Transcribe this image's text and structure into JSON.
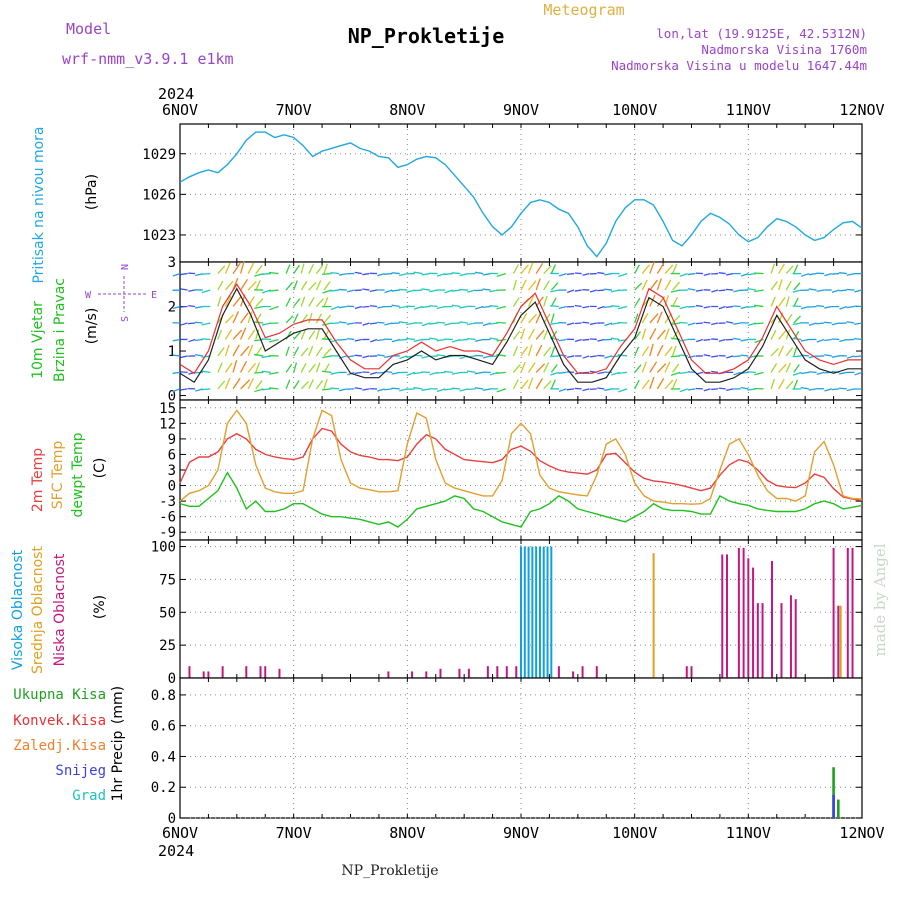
{
  "header": {
    "model_label": "Model",
    "model_name": "wrf-nmm_v3.9.1 e1km",
    "title": "NP_Prokletije",
    "meteogram_label": "Meteogram",
    "coords": "lon,lat (19.9125E, 42.5312N)",
    "elevation": "Nadmorska Visina 1760m",
    "model_elevation": "Nadmorska Visina u modelu 1647.44m",
    "footer_title": "NP_Prokletije",
    "watermark": "made by Angel",
    "year": "2024"
  },
  "colors": {
    "purple": "#9a44c8",
    "gold": "#e0b040",
    "pressure": "#20a8e0",
    "temp2m": "#e84040",
    "sfc": "#e0a030",
    "dew": "#20c020",
    "wind_green": "#20c020",
    "high_cloud": "#10a0e0",
    "mid_cloud": "#e0a020",
    "low_cloud": "#c01880",
    "total_precip": "#20a020",
    "conv_precip": "#e83030",
    "frozen_precip": "#f08030",
    "snow": "#4040e0",
    "graupel": "#20c0c0"
  },
  "chart_data": [
    {
      "type": "line",
      "panel": "pressure",
      "ylabel": "Pritisak na nivou mora",
      "unit": "(hPa)",
      "x_ticks": [
        "6NOV",
        "7NOV",
        "8NOV",
        "9NOV",
        "10NOV",
        "11NOV",
        "12NOV"
      ],
      "y_ticks": [
        1023,
        1026,
        1029
      ],
      "ylim": [
        1021.0,
        1031.2
      ],
      "xlim": [
        0,
        144
      ],
      "grid": true,
      "series": [
        {
          "color": "#20a8e0",
          "x": [
            0,
            2,
            4,
            6,
            8,
            10,
            12,
            14,
            16,
            18,
            20,
            22,
            24,
            26,
            28,
            30,
            32,
            34,
            36,
            38,
            40,
            42,
            44,
            46,
            48,
            50,
            52,
            54,
            56,
            58,
            60,
            62,
            64,
            66,
            68,
            70,
            72,
            74,
            76,
            78,
            80,
            82,
            84,
            86,
            88,
            90,
            92,
            94,
            96,
            98,
            100,
            102,
            104,
            106,
            108,
            110,
            112,
            114,
            116,
            118,
            120,
            122,
            124,
            126,
            128,
            130,
            132,
            134,
            136,
            138,
            140,
            142,
            144
          ],
          "values": [
            1026.9,
            1027.3,
            1027.6,
            1027.8,
            1027.6,
            1028.2,
            1029.0,
            1030.0,
            1030.6,
            1030.6,
            1030.2,
            1030.4,
            1030.2,
            1029.6,
            1028.8,
            1029.2,
            1029.4,
            1029.6,
            1029.8,
            1029.4,
            1029.2,
            1028.8,
            1028.7,
            1028.0,
            1028.2,
            1028.6,
            1028.8,
            1028.7,
            1028.2,
            1027.4,
            1026.6,
            1025.8,
            1024.6,
            1023.6,
            1023.0,
            1023.6,
            1024.6,
            1025.4,
            1025.6,
            1025.4,
            1024.9,
            1024.6,
            1023.6,
            1022.2,
            1021.4,
            1022.4,
            1024.0,
            1025.0,
            1025.6,
            1025.6,
            1025.2,
            1024.0,
            1022.6,
            1022.2,
            1023.0,
            1024.0,
            1024.6,
            1024.3,
            1023.8,
            1023.0,
            1022.5,
            1022.8,
            1023.6,
            1024.2,
            1024.0,
            1023.6,
            1023.0,
            1022.6,
            1022.8,
            1023.4,
            1023.9,
            1024.0,
            1023.5
          ]
        }
      ]
    },
    {
      "type": "line",
      "panel": "wind",
      "ylabel": [
        "10m Vjetar",
        "Brzina i Pravac"
      ],
      "unit": "(m/s)",
      "y_ticks": [
        0,
        1,
        2,
        3
      ],
      "ylim": [
        -0.1,
        3.0
      ],
      "xlim": [
        0,
        144
      ],
      "compass": {
        "n": "N",
        "s": "S",
        "w": "W",
        "e": "E"
      },
      "series": [
        {
          "name": "speed",
          "color": "#202020",
          "x": [
            0,
            3,
            6,
            9,
            12,
            15,
            18,
            21,
            24,
            27,
            30,
            33,
            36,
            39,
            42,
            45,
            48,
            51,
            54,
            57,
            60,
            63,
            66,
            69,
            72,
            75,
            78,
            81,
            84,
            87,
            90,
            93,
            96,
            99,
            102,
            105,
            108,
            111,
            114,
            117,
            120,
            123,
            126,
            129,
            132,
            135,
            138,
            141,
            144
          ],
          "values": [
            0.5,
            0.3,
            0.8,
            1.8,
            2.4,
            1.8,
            1.0,
            1.2,
            1.4,
            1.5,
            1.5,
            1.0,
            0.5,
            0.4,
            0.4,
            0.7,
            0.8,
            1.0,
            0.8,
            0.9,
            0.9,
            0.8,
            0.7,
            1.2,
            1.8,
            2.1,
            1.4,
            0.7,
            0.3,
            0.3,
            0.4,
            0.9,
            1.3,
            2.2,
            2.0,
            1.3,
            0.6,
            0.3,
            0.3,
            0.4,
            0.6,
            1.1,
            1.8,
            1.3,
            0.8,
            0.6,
            0.5,
            0.6,
            0.6
          ]
        },
        {
          "name": "gust",
          "color": "#e83030",
          "x": [
            0,
            3,
            6,
            9,
            12,
            15,
            18,
            21,
            24,
            27,
            30,
            33,
            36,
            39,
            42,
            45,
            48,
            51,
            54,
            57,
            60,
            63,
            66,
            69,
            72,
            75,
            78,
            81,
            84,
            87,
            90,
            93,
            96,
            99,
            102,
            105,
            108,
            111,
            114,
            117,
            120,
            123,
            126,
            129,
            132,
            135,
            138,
            141,
            144
          ],
          "values": [
            0.7,
            0.5,
            1.0,
            2.0,
            2.5,
            2.0,
            1.3,
            1.4,
            1.6,
            1.7,
            1.7,
            1.2,
            0.8,
            0.6,
            0.6,
            0.9,
            1.0,
            1.2,
            1.0,
            1.1,
            1.0,
            1.0,
            0.9,
            1.4,
            2.0,
            2.3,
            1.6,
            0.9,
            0.5,
            0.5,
            0.6,
            1.1,
            1.5,
            2.4,
            2.2,
            1.5,
            0.8,
            0.5,
            0.5,
            0.6,
            0.8,
            1.3,
            2.0,
            1.5,
            1.0,
            0.8,
            0.7,
            0.8,
            0.8
          ]
        }
      ]
    },
    {
      "type": "line",
      "panel": "temperature",
      "ylabel": [
        "2m Temp",
        "SFC Temp",
        "dewpt Temp"
      ],
      "unit": "(C)",
      "y_ticks": [
        -9,
        -6,
        -3,
        0,
        3,
        6,
        9,
        12,
        15
      ],
      "ylim": [
        -10.5,
        16.5
      ],
      "xlim": [
        0,
        144
      ],
      "grid": true,
      "series": [
        {
          "name": "2m Temp",
          "color": "#e84040",
          "x": [
            0,
            2,
            4,
            6,
            8,
            10,
            12,
            14,
            16,
            18,
            20,
            22,
            24,
            26,
            28,
            30,
            32,
            34,
            36,
            38,
            40,
            42,
            44,
            46,
            48,
            50,
            52,
            54,
            56,
            58,
            60,
            62,
            64,
            66,
            68,
            70,
            72,
            74,
            76,
            78,
            80,
            82,
            84,
            86,
            88,
            90,
            92,
            94,
            96,
            98,
            100,
            102,
            104,
            106,
            108,
            110,
            112,
            114,
            116,
            118,
            120,
            122,
            124,
            126,
            128,
            130,
            132,
            134,
            136,
            138,
            140,
            142,
            144
          ],
          "values": [
            0.5,
            4.5,
            5.5,
            5.5,
            6.5,
            9,
            10,
            9,
            7,
            6,
            5.5,
            5.2,
            5,
            5.5,
            9,
            11,
            10.5,
            8,
            6.5,
            5.8,
            5.5,
            5,
            5,
            4.8,
            5.5,
            8,
            9.8,
            9,
            7,
            6,
            5,
            4.8,
            4.6,
            4.4,
            5,
            7,
            7.6,
            6.6,
            4.8,
            3.8,
            3,
            2.6,
            2.4,
            2.2,
            3,
            6,
            6.2,
            4.4,
            2.6,
            1.4,
            0.9,
            0.7,
            0.4,
            0,
            -0.5,
            -1,
            -0.5,
            2,
            4,
            5,
            4.5,
            3,
            1,
            0,
            -0.3,
            -0.4,
            0.5,
            2.2,
            1.6,
            -0.6,
            -2.2,
            -2.6,
            -2.9
          ]
        },
        {
          "name": "SFC Temp",
          "color": "#e0a030",
          "x": [
            0,
            2,
            4,
            6,
            8,
            10,
            12,
            14,
            16,
            18,
            20,
            22,
            24,
            26,
            28,
            30,
            32,
            34,
            36,
            38,
            40,
            42,
            44,
            46,
            48,
            50,
            52,
            54,
            56,
            58,
            60,
            62,
            64,
            66,
            68,
            70,
            72,
            74,
            76,
            78,
            80,
            82,
            84,
            86,
            88,
            90,
            92,
            94,
            96,
            98,
            100,
            102,
            104,
            106,
            108,
            110,
            112,
            114,
            116,
            118,
            120,
            122,
            124,
            126,
            128,
            130,
            132,
            134,
            136,
            138,
            140,
            142,
            144
          ],
          "values": [
            -3,
            -1.5,
            -1,
            0,
            3,
            12,
            14.5,
            12,
            4,
            -0.5,
            -1.2,
            -1.5,
            -1.5,
            -1,
            9,
            14.5,
            13.5,
            5,
            0.5,
            -0.5,
            -0.8,
            -1.2,
            -1.2,
            -1,
            8,
            14,
            13,
            5,
            0.5,
            -0.5,
            -1,
            -1.5,
            -2,
            -2,
            1,
            10,
            12,
            10,
            2,
            -0.5,
            -1.2,
            -1.5,
            -1.8,
            -2,
            2,
            8,
            9,
            6,
            0.5,
            -2,
            -3,
            -3.2,
            -3.5,
            -3.5,
            -3.6,
            -3.5,
            -2.5,
            3,
            8,
            9,
            6,
            2,
            -1,
            -2.5,
            -2.5,
            -3,
            -2,
            6.5,
            8.5,
            4,
            -2,
            -2.5,
            -2.6
          ]
        },
        {
          "name": "dewpt Temp",
          "color": "#20c020",
          "x": [
            0,
            2,
            4,
            6,
            8,
            10,
            12,
            14,
            16,
            18,
            20,
            22,
            24,
            26,
            28,
            30,
            32,
            34,
            36,
            38,
            40,
            42,
            44,
            46,
            48,
            50,
            52,
            54,
            56,
            58,
            60,
            62,
            64,
            66,
            68,
            70,
            72,
            74,
            76,
            78,
            80,
            82,
            84,
            86,
            88,
            90,
            92,
            94,
            96,
            98,
            100,
            102,
            104,
            106,
            108,
            110,
            112,
            114,
            116,
            118,
            120,
            122,
            124,
            126,
            128,
            130,
            132,
            134,
            136,
            138,
            140,
            142,
            144
          ],
          "values": [
            -3.5,
            -4,
            -4,
            -2.5,
            -1,
            2.5,
            -0.5,
            -4.5,
            -3,
            -5,
            -5,
            -4.5,
            -3.5,
            -3.5,
            -4.5,
            -5.5,
            -6,
            -6,
            -6.3,
            -6.5,
            -7,
            -7.5,
            -7,
            -8,
            -6.5,
            -4.5,
            -4,
            -3.5,
            -3,
            -2,
            -2.5,
            -4.5,
            -5,
            -6,
            -7,
            -7.5,
            -8,
            -5,
            -4.5,
            -3.5,
            -2,
            -3,
            -4.5,
            -5,
            -5.5,
            -6,
            -6.5,
            -7,
            -6,
            -5,
            -3.5,
            -4.5,
            -4.8,
            -4.8,
            -5,
            -5.5,
            -5.5,
            -2,
            -3,
            -3.5,
            -3.8,
            -4.5,
            -4.8,
            -5,
            -5,
            -5,
            -4.5,
            -3.5,
            -3,
            -3.5,
            -4.5,
            -4.2,
            -3.8
          ]
        }
      ]
    },
    {
      "type": "bar",
      "panel": "clouds",
      "ylabel": [
        "Visoka Oblacnost",
        "Srednja Oblacnost",
        "Niska Oblacnost"
      ],
      "unit": "(%)",
      "y_ticks": [
        0,
        25,
        50,
        75,
        100
      ],
      "ylim": [
        0,
        105
      ],
      "xlim": [
        0,
        144
      ],
      "grid": true,
      "series": [
        {
          "name": "Visoka Oblacnost",
          "color": "#10a0e0",
          "x": [
            72,
            72.8,
            73.6,
            74.4,
            75.2,
            76.0,
            76.8,
            77.6,
            78.4
          ],
          "values": [
            100,
            100,
            100,
            100,
            100,
            100,
            100,
            100,
            100
          ]
        },
        {
          "name": "Srednja Oblacnost",
          "color": "#e0a020",
          "x": [
            100,
            139.5
          ],
          "values": [
            95,
            55
          ]
        },
        {
          "name": "Niska Oblacnost",
          "color": "#c01880",
          "x": [
            2,
            5,
            6,
            9,
            14,
            17,
            18,
            21,
            44,
            49,
            52,
            55,
            59,
            61,
            65,
            67,
            69,
            71,
            80,
            83,
            85,
            88,
            107,
            108,
            114.5,
            115.5,
            118,
            119,
            120,
            121,
            122,
            123,
            125,
            127,
            129,
            130,
            138,
            139,
            141,
            142
          ],
          "values": [
            9,
            5,
            5,
            9,
            9,
            9,
            9,
            7,
            5,
            5,
            5,
            7,
            7,
            7,
            9,
            9,
            9,
            9,
            9,
            5,
            9,
            9,
            9,
            9,
            94,
            94,
            99,
            99,
            91,
            84,
            57,
            57,
            89,
            57,
            63,
            60,
            99,
            55,
            99,
            99
          ]
        }
      ]
    },
    {
      "type": "bar",
      "panel": "precip",
      "ylabel": "1hr Precip",
      "unit": "(mm)",
      "y_ticks": [
        0,
        0.2,
        0.4,
        0.6,
        0.8
      ],
      "ylim": [
        0,
        0.91
      ],
      "xlim": [
        0,
        144
      ],
      "grid": true,
      "legend": [
        "Ukupna Kisa",
        "Konvek.Kisa",
        "Zaledj.Kisa",
        "Snijeg",
        "Grad"
      ],
      "series": [
        {
          "name": "Ukupna Kisa",
          "color": "#20a020",
          "x": [
            138,
            139
          ],
          "values": [
            0.33,
            0.12
          ]
        },
        {
          "name": "Snijeg",
          "color": "#4040e0",
          "x": [
            138
          ],
          "values": [
            0.15
          ]
        }
      ]
    }
  ]
}
